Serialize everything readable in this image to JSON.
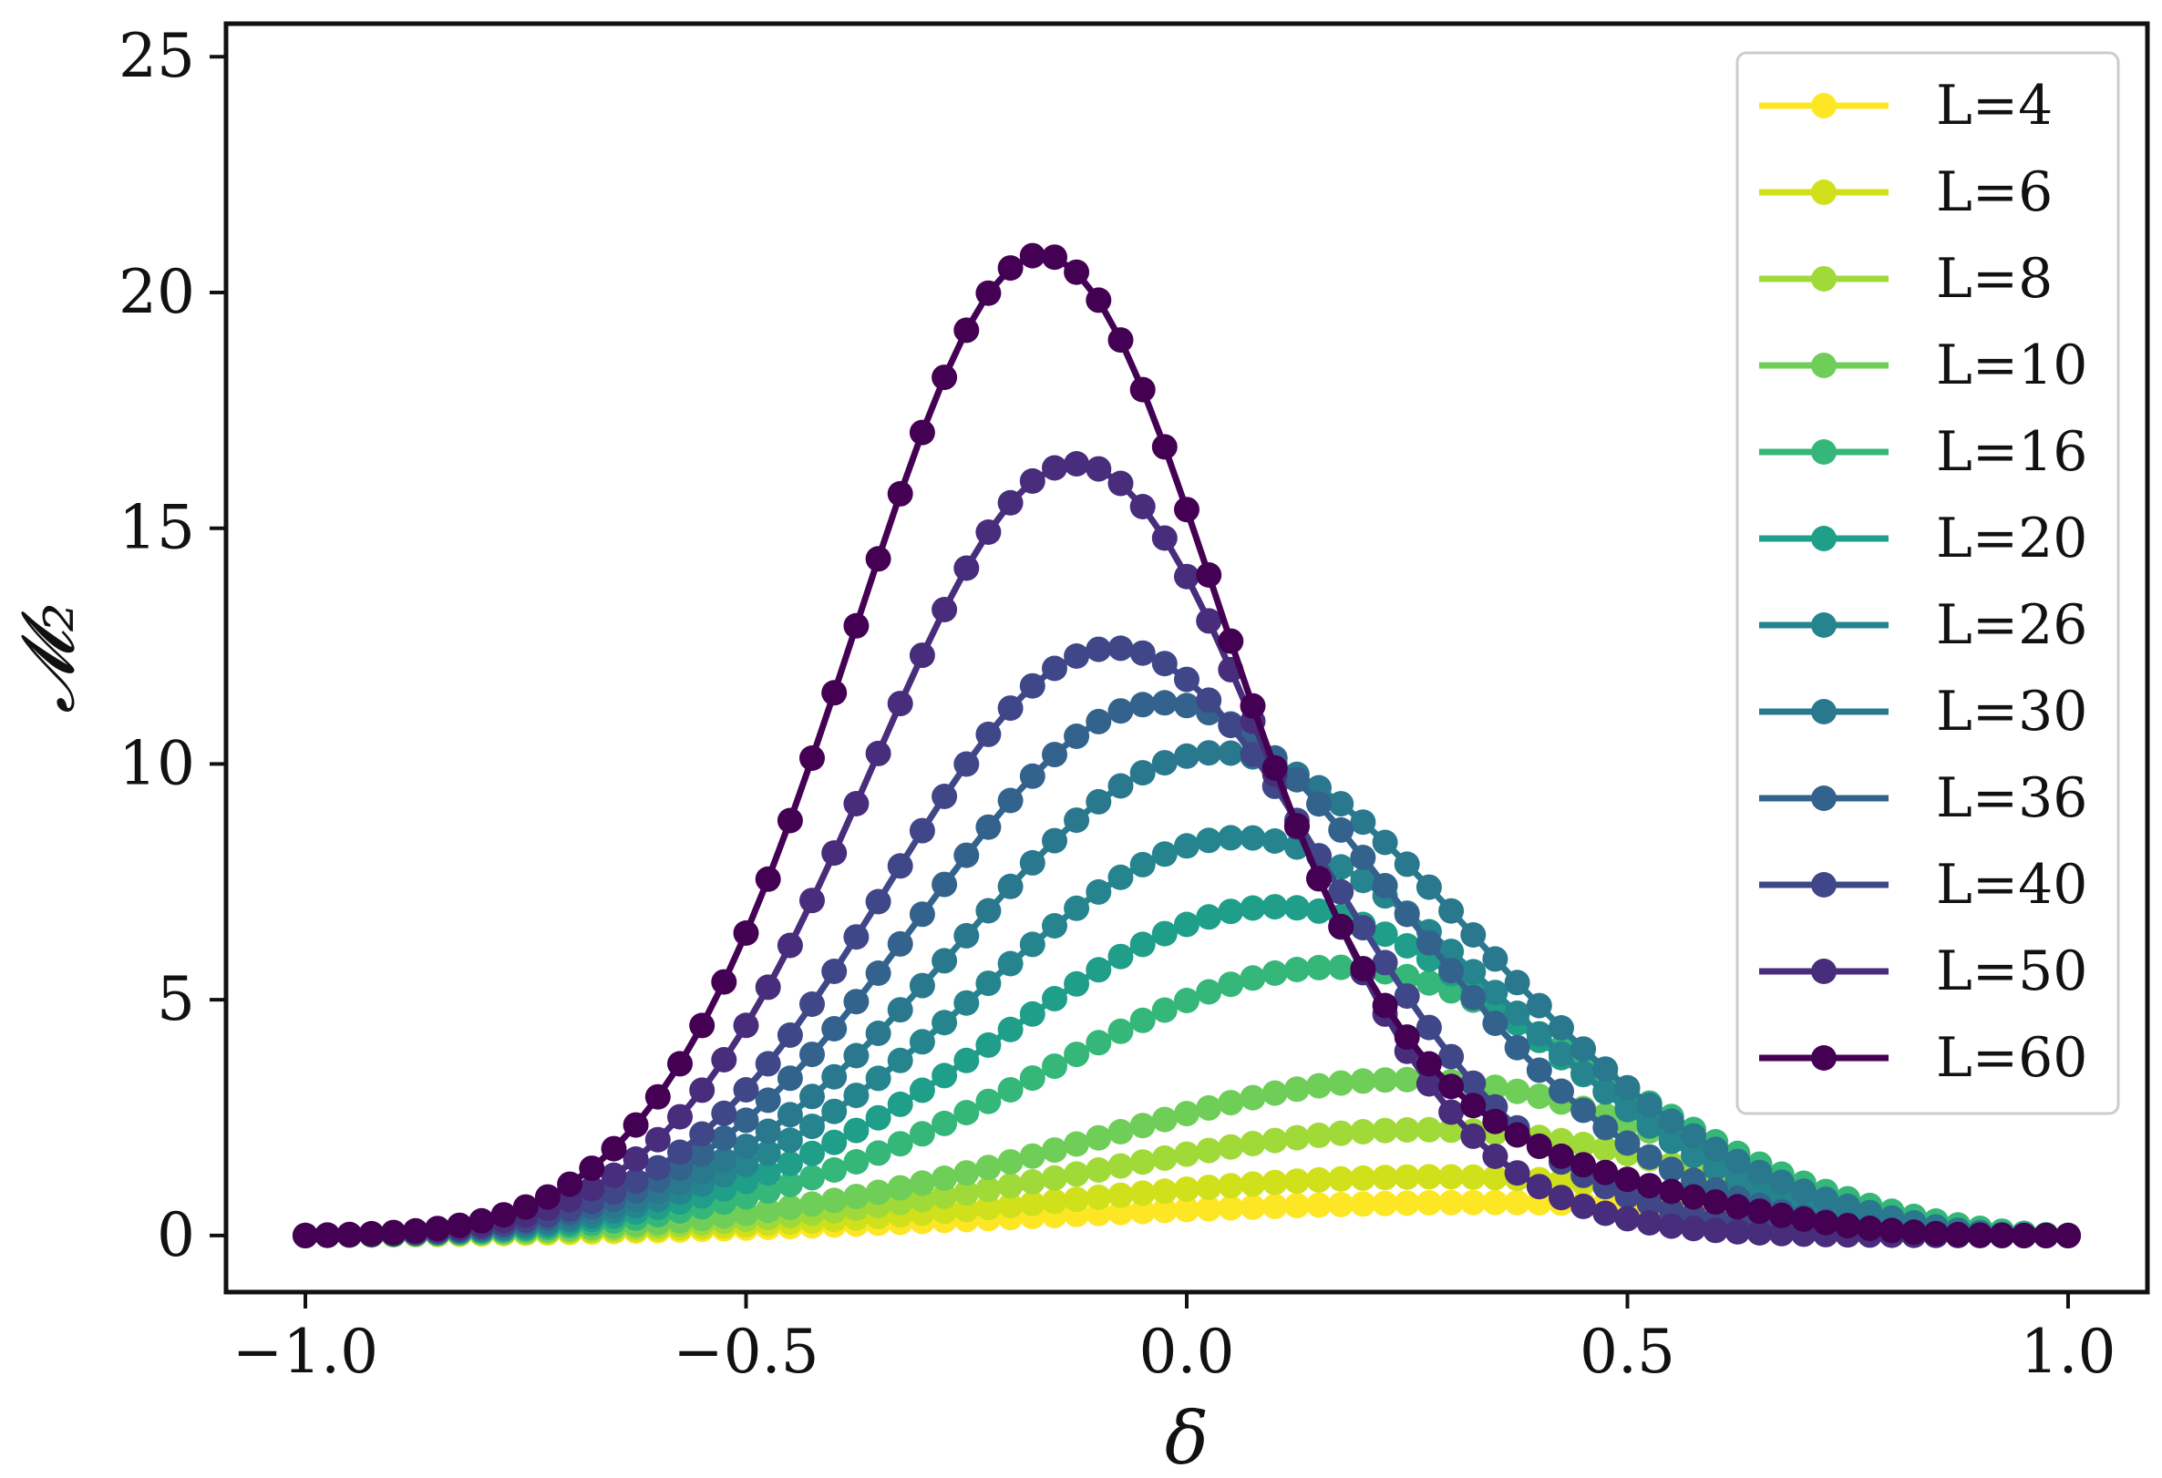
{
  "chart_data": {
    "type": "line",
    "title": "",
    "xlabel": "δ",
    "ylabel": "𝓜₂",
    "xlim": [
      -1.09,
      1.09
    ],
    "ylim": [
      -1.2,
      25.7
    ],
    "xticks": [
      -1.0,
      -0.5,
      0.0,
      0.5,
      1.0
    ],
    "xtick_labels": [
      "−1.0",
      "−0.5",
      "0.0",
      "0.5",
      "1.0"
    ],
    "yticks": [
      0,
      5,
      10,
      15,
      20,
      25
    ],
    "ytick_labels": [
      "0",
      "5",
      "10",
      "15",
      "20",
      "25"
    ],
    "grid": false,
    "legend_position": "top-right",
    "x": [
      -1.0,
      -0.975,
      -0.95,
      -0.925,
      -0.9,
      -0.875,
      -0.85,
      -0.825,
      -0.8,
      -0.775,
      -0.75,
      -0.725,
      -0.7,
      -0.675,
      -0.65,
      -0.625,
      -0.6,
      -0.575,
      -0.55,
      -0.525,
      -0.5,
      -0.475,
      -0.45,
      -0.425,
      -0.4,
      -0.375,
      -0.35,
      -0.325,
      -0.3,
      -0.275,
      -0.25,
      -0.225,
      -0.2,
      -0.175,
      -0.15,
      -0.125,
      -0.1,
      -0.075,
      -0.05,
      -0.025,
      0.0,
      0.025,
      0.05,
      0.075,
      0.1,
      0.125,
      0.15,
      0.175,
      0.2,
      0.225,
      0.25,
      0.275,
      0.3,
      0.325,
      0.35,
      0.375,
      0.4,
      0.425,
      0.45,
      0.475,
      0.5,
      0.525,
      0.55,
      0.575,
      0.6,
      0.625,
      0.65,
      0.675,
      0.7,
      0.725,
      0.75,
      0.775,
      0.8,
      0.825,
      0.85,
      0.875,
      0.9,
      0.925,
      0.95,
      0.975,
      1.0
    ],
    "series": [
      {
        "name": "L=4",
        "color": "#fde725",
        "values": [
          0.0,
          0.002,
          0.004,
          0.007,
          0.011,
          0.015,
          0.02,
          0.025,
          0.031,
          0.038,
          0.045,
          0.053,
          0.062,
          0.071,
          0.081,
          0.092,
          0.103,
          0.116,
          0.129,
          0.142,
          0.157,
          0.172,
          0.188,
          0.205,
          0.222,
          0.24,
          0.259,
          0.278,
          0.298,
          0.318,
          0.339,
          0.36,
          0.381,
          0.403,
          0.424,
          0.446,
          0.467,
          0.488,
          0.509,
          0.529,
          0.548,
          0.567,
          0.585,
          0.602,
          0.618,
          0.633,
          0.646,
          0.658,
          0.669,
          0.678,
          0.686,
          0.693,
          0.697,
          0.7,
          0.7,
          0.698,
          0.694,
          0.686,
          0.676,
          0.663,
          0.646,
          0.625,
          0.6,
          0.57,
          0.537,
          0.5,
          0.46,
          0.418,
          0.373,
          0.328,
          0.283,
          0.238,
          0.195,
          0.155,
          0.118,
          0.085,
          0.057,
          0.034,
          0.017,
          0.005,
          0.0
        ]
      },
      {
        "name": "L=6",
        "color": "#d0e11c",
        "values": [
          0.0,
          0.003,
          0.006,
          0.01,
          0.015,
          0.02,
          0.026,
          0.033,
          0.041,
          0.05,
          0.06,
          0.071,
          0.083,
          0.096,
          0.11,
          0.126,
          0.143,
          0.161,
          0.181,
          0.203,
          0.226,
          0.251,
          0.278,
          0.306,
          0.336,
          0.368,
          0.402,
          0.437,
          0.474,
          0.513,
          0.553,
          0.594,
          0.636,
          0.679,
          0.723,
          0.767,
          0.811,
          0.855,
          0.898,
          0.94,
          0.981,
          1.02,
          1.057,
          1.092,
          1.124,
          1.153,
          1.178,
          1.2,
          1.218,
          1.232,
          1.241,
          1.246,
          1.245,
          1.239,
          1.227,
          1.209,
          1.185,
          1.154,
          1.116,
          1.072,
          1.021,
          0.964,
          0.901,
          0.832,
          0.759,
          0.683,
          0.605,
          0.526,
          0.449,
          0.374,
          0.304,
          0.239,
          0.181,
          0.131,
          0.089,
          0.056,
          0.031,
          0.015,
          0.005,
          0.001,
          0.0
        ]
      },
      {
        "name": "L=8",
        "color": "#a0da39",
        "values": [
          0.0,
          0.003,
          0.007,
          0.012,
          0.018,
          0.025,
          0.033,
          0.042,
          0.053,
          0.065,
          0.079,
          0.095,
          0.112,
          0.132,
          0.154,
          0.178,
          0.204,
          0.233,
          0.265,
          0.3,
          0.338,
          0.379,
          0.423,
          0.471,
          0.522,
          0.577,
          0.635,
          0.697,
          0.763,
          0.832,
          0.904,
          0.979,
          1.057,
          1.138,
          1.22,
          1.304,
          1.389,
          1.474,
          1.559,
          1.643,
          1.725,
          1.804,
          1.879,
          1.95,
          2.015,
          2.074,
          2.125,
          2.168,
          2.202,
          2.226,
          2.24,
          2.243,
          2.234,
          2.214,
          2.181,
          2.137,
          2.08,
          2.011,
          1.93,
          1.839,
          1.737,
          1.627,
          1.509,
          1.385,
          1.257,
          1.127,
          0.996,
          0.868,
          0.744,
          0.626,
          0.515,
          0.414,
          0.324,
          0.245,
          0.177,
          0.121,
          0.077,
          0.043,
          0.019,
          0.005,
          0.0
        ]
      },
      {
        "name": "L=10",
        "color": "#6ece58",
        "values": [
          0.0,
          0.004,
          0.008,
          0.014,
          0.021,
          0.029,
          0.039,
          0.051,
          0.064,
          0.08,
          0.098,
          0.119,
          0.143,
          0.17,
          0.2,
          0.234,
          0.272,
          0.314,
          0.361,
          0.412,
          0.468,
          0.529,
          0.595,
          0.667,
          0.745,
          0.828,
          0.917,
          1.011,
          1.111,
          1.216,
          1.327,
          1.442,
          1.562,
          1.685,
          1.812,
          1.941,
          2.071,
          2.202,
          2.332,
          2.46,
          2.585,
          2.705,
          2.818,
          2.924,
          3.02,
          3.104,
          3.176,
          3.233,
          3.275,
          3.299,
          3.306,
          3.294,
          3.263,
          3.213,
          3.144,
          3.057,
          2.952,
          2.831,
          2.695,
          2.545,
          2.385,
          2.216,
          2.041,
          1.862,
          1.682,
          1.503,
          1.328,
          1.159,
          0.998,
          0.846,
          0.706,
          0.578,
          0.462,
          0.36,
          0.271,
          0.195,
          0.132,
          0.082,
          0.043,
          0.016,
          0.0
        ]
      },
      {
        "name": "L=16",
        "color": "#35b779",
        "values": [
          0.0,
          0.005,
          0.011,
          0.018,
          0.027,
          0.038,
          0.051,
          0.067,
          0.087,
          0.11,
          0.138,
          0.171,
          0.21,
          0.256,
          0.309,
          0.37,
          0.44,
          0.52,
          0.609,
          0.709,
          0.821,
          0.944,
          1.08,
          1.228,
          1.389,
          1.563,
          1.749,
          1.947,
          2.157,
          2.377,
          2.607,
          2.845,
          3.09,
          3.339,
          3.59,
          3.841,
          4.089,
          4.33,
          4.562,
          4.781,
          4.984,
          5.167,
          5.327,
          5.461,
          5.566,
          5.64,
          5.681,
          5.687,
          5.658,
          5.592,
          5.491,
          5.356,
          5.189,
          4.992,
          4.769,
          4.522,
          4.257,
          3.978,
          3.689,
          3.395,
          3.1,
          2.808,
          2.523,
          2.249,
          1.988,
          1.742,
          1.513,
          1.302,
          1.109,
          0.934,
          0.778,
          0.638,
          0.514,
          0.405,
          0.308,
          0.224,
          0.152,
          0.093,
          0.047,
          0.016,
          0.0
        ]
      },
      {
        "name": "L=20",
        "color": "#1f9e89",
        "values": [
          0.0,
          0.005,
          0.012,
          0.02,
          0.031,
          0.044,
          0.061,
          0.081,
          0.106,
          0.137,
          0.174,
          0.219,
          0.273,
          0.336,
          0.411,
          0.497,
          0.597,
          0.711,
          0.84,
          0.985,
          1.147,
          1.327,
          1.525,
          1.741,
          1.976,
          2.228,
          2.497,
          2.782,
          3.081,
          3.392,
          3.712,
          4.039,
          4.369,
          4.698,
          5.022,
          5.336,
          5.636,
          5.917,
          6.174,
          6.403,
          6.598,
          6.756,
          6.873,
          6.946,
          6.972,
          6.949,
          6.879,
          6.761,
          6.597,
          6.39,
          6.143,
          5.862,
          5.552,
          5.218,
          4.867,
          4.505,
          4.138,
          3.772,
          3.412,
          3.063,
          2.729,
          2.412,
          2.116,
          1.841,
          1.589,
          1.36,
          1.152,
          0.966,
          0.8,
          0.653,
          0.523,
          0.41,
          0.312,
          0.228,
          0.158,
          0.101,
          0.056,
          0.024,
          0.006,
          0.0,
          0.0
        ]
      },
      {
        "name": "L=26",
        "color": "#25848e",
        "values": [
          0.0,
          0.006,
          0.013,
          0.022,
          0.034,
          0.049,
          0.069,
          0.094,
          0.125,
          0.163,
          0.21,
          0.267,
          0.336,
          0.419,
          0.517,
          0.632,
          0.765,
          0.918,
          1.092,
          1.289,
          1.509,
          1.753,
          2.022,
          2.315,
          2.632,
          2.972,
          3.333,
          3.713,
          4.108,
          4.516,
          4.931,
          5.35,
          5.766,
          6.174,
          6.568,
          6.94,
          7.285,
          7.596,
          7.866,
          8.09,
          8.263,
          8.379,
          8.436,
          8.432,
          8.366,
          8.239,
          8.055,
          7.817,
          7.531,
          7.202,
          6.837,
          6.442,
          6.025,
          5.594,
          5.154,
          4.713,
          4.276,
          3.849,
          3.437,
          3.043,
          2.67,
          2.321,
          1.997,
          1.699,
          1.428,
          1.183,
          0.963,
          0.768,
          0.596,
          0.447,
          0.321,
          0.218,
          0.136,
          0.076,
          0.035,
          0.012,
          0.002,
          0.0,
          0.0,
          0.0,
          0.0
        ]
      },
      {
        "name": "L=30",
        "color": "#2a788e",
        "values": [
          0.0,
          0.006,
          0.014,
          0.024,
          0.037,
          0.054,
          0.076,
          0.105,
          0.141,
          0.186,
          0.242,
          0.311,
          0.395,
          0.496,
          0.618,
          0.761,
          0.929,
          1.124,
          1.348,
          1.603,
          1.89,
          2.21,
          2.563,
          2.949,
          3.367,
          3.815,
          4.289,
          4.786,
          5.301,
          5.827,
          6.358,
          6.887,
          7.404,
          7.903,
          8.374,
          8.808,
          9.198,
          9.535,
          9.813,
          10.025,
          10.167,
          10.236,
          10.231,
          10.152,
          10.001,
          9.781,
          9.497,
          9.157,
          8.768,
          8.337,
          7.874,
          7.387,
          6.884,
          6.375,
          5.866,
          5.364,
          4.875,
          4.404,
          3.955,
          3.531,
          3.134,
          2.765,
          2.425,
          2.113,
          1.829,
          1.571,
          1.338,
          1.128,
          0.939,
          0.77,
          0.62,
          0.487,
          0.37,
          0.269,
          0.184,
          0.114,
          0.061,
          0.024,
          0.005,
          0.0,
          0.0
        ]
      },
      {
        "name": "L=36",
        "color": "#33638d",
        "values": [
          0.0,
          0.007,
          0.015,
          0.026,
          0.041,
          0.06,
          0.086,
          0.119,
          0.162,
          0.216,
          0.285,
          0.371,
          0.477,
          0.607,
          0.764,
          0.951,
          1.172,
          1.429,
          1.726,
          2.064,
          2.445,
          2.869,
          3.335,
          3.841,
          4.385,
          4.961,
          5.563,
          6.184,
          6.814,
          7.445,
          8.065,
          8.662,
          9.225,
          9.742,
          10.2,
          10.589,
          10.9,
          11.125,
          11.259,
          11.297,
          11.24,
          11.089,
          10.848,
          10.525,
          10.128,
          9.667,
          9.154,
          8.6,
          8.018,
          7.418,
          6.811,
          6.208,
          5.617,
          5.046,
          4.5,
          3.985,
          3.505,
          3.062,
          2.657,
          2.29,
          1.96,
          1.665,
          1.403,
          1.171,
          0.967,
          0.79,
          0.637,
          0.505,
          0.393,
          0.299,
          0.221,
          0.158,
          0.108,
          0.069,
          0.041,
          0.021,
          0.009,
          0.002,
          0.0,
          0.0,
          0.0
        ]
      },
      {
        "name": "L=40",
        "color": "#3f4788",
        "values": [
          0.0,
          0.007,
          0.016,
          0.028,
          0.044,
          0.066,
          0.095,
          0.133,
          0.183,
          0.247,
          0.329,
          0.433,
          0.562,
          0.722,
          0.918,
          1.154,
          1.436,
          1.767,
          2.152,
          2.592,
          3.09,
          3.643,
          4.25,
          4.906,
          5.603,
          6.332,
          7.081,
          7.838,
          8.587,
          9.313,
          9.999,
          10.628,
          11.185,
          11.656,
          12.027,
          12.288,
          12.432,
          12.454,
          12.353,
          12.131,
          11.794,
          11.353,
          10.818,
          10.204,
          9.527,
          8.803,
          8.051,
          7.287,
          6.528,
          5.788,
          5.079,
          4.412,
          3.794,
          3.232,
          2.727,
          2.282,
          1.894,
          1.559,
          1.275,
          1.036,
          0.837,
          0.673,
          0.538,
          0.429,
          0.341,
          0.27,
          0.213,
          0.167,
          0.13,
          0.099,
          0.074,
          0.054,
          0.037,
          0.023,
          0.013,
          0.006,
          0.002,
          0.0,
          0.0,
          0.0,
          0.0
        ]
      },
      {
        "name": "L=50",
        "color": "#472d7b",
        "values": [
          0.0,
          0.008,
          0.018,
          0.031,
          0.05,
          0.077,
          0.113,
          0.163,
          0.229,
          0.317,
          0.432,
          0.578,
          0.763,
          0.994,
          1.278,
          1.622,
          2.033,
          2.518,
          3.082,
          3.728,
          4.457,
          5.267,
          6.153,
          7.106,
          8.113,
          9.159,
          10.222,
          11.281,
          12.307,
          13.274,
          14.153,
          14.917,
          15.54,
          16.0,
          16.279,
          16.367,
          16.257,
          15.951,
          15.457,
          14.792,
          13.975,
          13.035,
          12.001,
          10.907,
          9.785,
          8.665,
          7.576,
          6.541,
          5.576,
          4.696,
          3.908,
          3.216,
          2.617,
          2.107,
          1.68,
          1.327,
          1.038,
          0.805,
          0.619,
          0.472,
          0.357,
          0.268,
          0.2,
          0.148,
          0.109,
          0.079,
          0.057,
          0.041,
          0.029,
          0.02,
          0.014,
          0.009,
          0.006,
          0.004,
          0.002,
          0.001,
          0.0,
          0.0,
          0.0,
          0.0,
          0.0
        ]
      },
      {
        "name": "L=60",
        "color": "#440154",
        "values": [
          0.0,
          0.009,
          0.021,
          0.038,
          0.063,
          0.098,
          0.148,
          0.217,
          0.312,
          0.438,
          0.604,
          0.818,
          1.089,
          1.427,
          1.842,
          2.344,
          2.942,
          3.643,
          4.454,
          5.378,
          6.414,
          7.558,
          8.8,
          10.124,
          11.51,
          12.93,
          14.35,
          15.731,
          17.03,
          18.201,
          19.2,
          19.985,
          20.52,
          20.78,
          20.749,
          20.43,
          19.836,
          18.993,
          17.94,
          16.725,
          15.397,
          14.008,
          12.606,
          11.232,
          9.918,
          8.69,
          7.565,
          6.553,
          5.658,
          4.878,
          4.209,
          3.641,
          3.161,
          2.758,
          2.42,
          2.134,
          1.891,
          1.682,
          1.499,
          1.337,
          1.191,
          1.058,
          0.935,
          0.82,
          0.712,
          0.611,
          0.516,
          0.428,
          0.347,
          0.274,
          0.209,
          0.153,
          0.106,
          0.069,
          0.041,
          0.021,
          0.009,
          0.003,
          0.001,
          0.0,
          0.0
        ]
      }
    ]
  }
}
